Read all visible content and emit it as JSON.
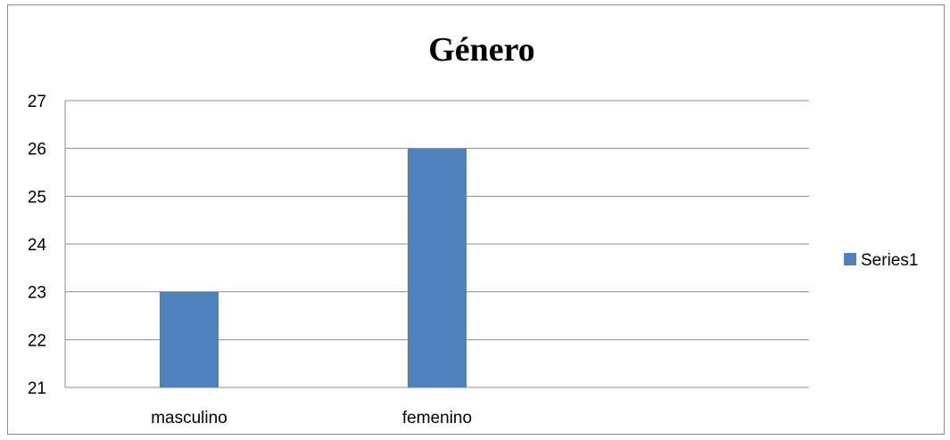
{
  "chart_data": {
    "type": "bar",
    "title": "Género",
    "categories": [
      "masculino",
      "femenino",
      ""
    ],
    "series": [
      {
        "name": "Series1",
        "values": [
          23,
          26,
          null
        ],
        "color": "#4f81bd"
      }
    ],
    "yticks": [
      "21",
      "22",
      "23",
      "24",
      "25",
      "26",
      "27"
    ],
    "ylim": [
      21,
      27
    ],
    "xlabel": "",
    "ylabel": "",
    "grid": true,
    "legend_position": "right"
  }
}
